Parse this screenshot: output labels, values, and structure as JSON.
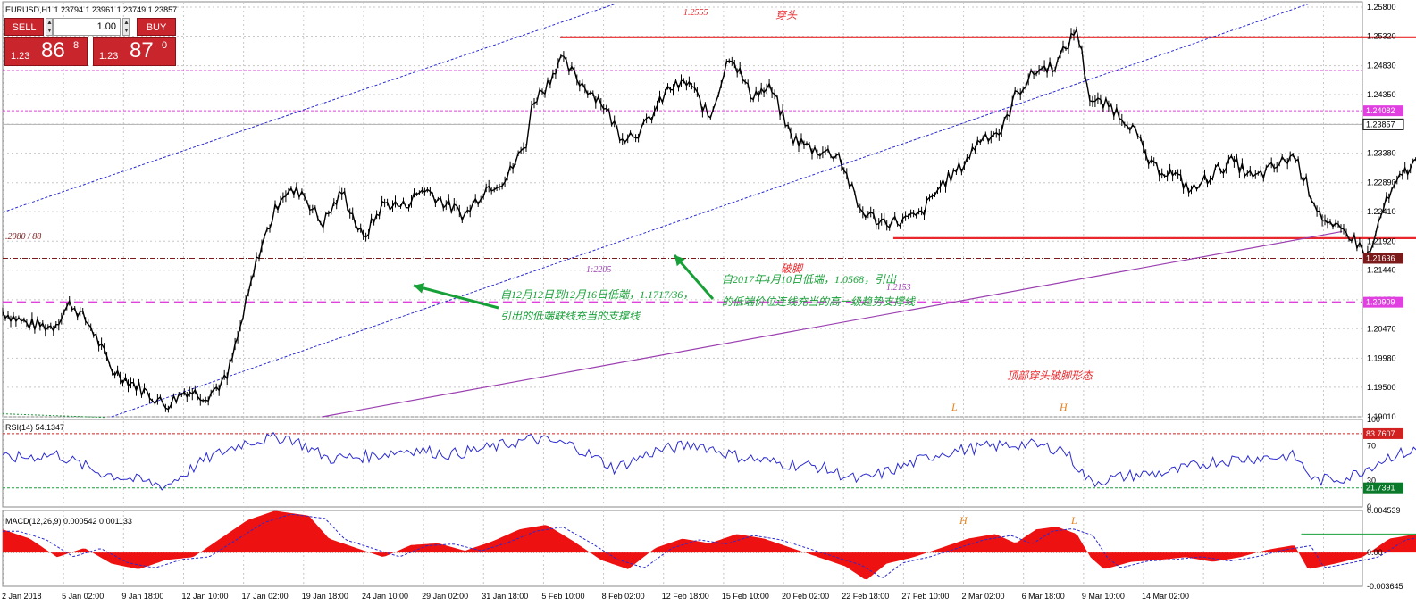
{
  "window": {
    "title": "EURUSD,H1  1.23794 1.23961 1.23749 1.23857"
  },
  "trade_panel": {
    "sell_label": "SELL",
    "buy_label": "BUY",
    "lot_value": "1.00",
    "sell_price_prefix": "1.23",
    "sell_price_main": "86",
    "sell_price_sup": "8",
    "buy_price_prefix": "1.23",
    "buy_price_main": "87",
    "buy_price_sup": "0",
    "spin_up_icon": "triangle-up",
    "spin_down_icon": "triangle-down"
  },
  "colors": {
    "candle": "#000000",
    "resistance": "#e8282c",
    "channel": "#2b2bd0",
    "trend": "#9b3fb0",
    "hline_magenta": "#e040e0",
    "hline_darkred": "#7a1a1a",
    "rsi": "#2b2bd0",
    "macd_hist": "#ee1111",
    "macd_signal": "#2b2bd0",
    "green": "#18a038",
    "orange": "#e8821e"
  },
  "chart_data": [
    {
      "type": "candlestick",
      "symbol": "EURUSD",
      "timeframe": "H1",
      "ylim": [
        1.1901,
        1.258
      ],
      "y_ticks": [
        "1.25800",
        "1.25320",
        "1.24830",
        "1.24350",
        "1.23860",
        "1.23380",
        "1.22890",
        "1.22410",
        "1.21920",
        "1.21440",
        "1.20950",
        "1.20470",
        "1.19980",
        "1.19500",
        "1.19010"
      ],
      "x_ticks": [
        "2 Jan 2018",
        "5 Jan 02:00",
        "9 Jan 18:00",
        "12 Jan 10:00",
        "17 Jan 02:00",
        "19 Jan 18:00",
        "24 Jan 10:00",
        "29 Jan 02:00",
        "31 Jan 18:00",
        "5 Feb 10:00",
        "8 Feb 02:00",
        "12 Feb 18:00",
        "15 Feb 10:00",
        "20 Feb 02:00",
        "22 Feb 18:00",
        "27 Feb 10:00",
        "2 Mar 02:00",
        "6 Mar 18:00",
        "9 Mar 10:00",
        "14 Mar 02:00"
      ],
      "path_points": [
        [
          0,
          1.2075
        ],
        [
          0.018,
          1.2055
        ],
        [
          0.037,
          1.205
        ],
        [
          0.05,
          1.209
        ],
        [
          0.065,
          1.205
        ],
        [
          0.08,
          1.198
        ],
        [
          0.1,
          1.195
        ],
        [
          0.12,
          1.192
        ],
        [
          0.135,
          1.1945
        ],
        [
          0.15,
          1.1935
        ],
        [
          0.165,
          1.1965
        ],
        [
          0.175,
          1.205
        ],
        [
          0.188,
          1.217
        ],
        [
          0.205,
          1.227
        ],
        [
          0.22,
          1.2275
        ],
        [
          0.235,
          1.222
        ],
        [
          0.25,
          1.2275
        ],
        [
          0.265,
          1.2195
        ],
        [
          0.28,
          1.2255
        ],
        [
          0.295,
          1.225
        ],
        [
          0.31,
          1.228
        ],
        [
          0.325,
          1.2255
        ],
        [
          0.34,
          1.2235
        ],
        [
          0.355,
          1.228
        ],
        [
          0.37,
          1.2295
        ],
        [
          0.385,
          1.2355
        ],
        [
          0.39,
          1.2425
        ],
        [
          0.4,
          1.245
        ],
        [
          0.41,
          1.2495
        ],
        [
          0.425,
          1.2455
        ],
        [
          0.44,
          1.2425
        ],
        [
          0.455,
          1.2365
        ],
        [
          0.47,
          1.2375
        ],
        [
          0.49,
          1.2445
        ],
        [
          0.505,
          1.2455
        ],
        [
          0.52,
          1.2395
        ],
        [
          0.535,
          1.2505
        ],
        [
          0.55,
          1.2435
        ],
        [
          0.565,
          1.2445
        ],
        [
          0.58,
          1.2365
        ],
        [
          0.595,
          1.2345
        ],
        [
          0.615,
          1.2335
        ],
        [
          0.63,
          1.2245
        ],
        [
          0.645,
          1.2225
        ],
        [
          0.66,
          1.2225
        ],
        [
          0.675,
          1.2235
        ],
        [
          0.69,
          1.2285
        ],
        [
          0.705,
          1.2315
        ],
        [
          0.72,
          1.2365
        ],
        [
          0.735,
          1.2375
        ],
        [
          0.745,
          1.2435
        ],
        [
          0.76,
          1.2475
        ],
        [
          0.775,
          1.2485
        ],
        [
          0.79,
          1.2545
        ],
        [
          0.8,
          1.2425
        ],
        [
          0.815,
          1.2415
        ],
        [
          0.83,
          1.2385
        ],
        [
          0.845,
          1.2315
        ],
        [
          0.86,
          1.2305
        ],
        [
          0.875,
          1.2275
        ],
        [
          0.89,
          1.2305
        ],
        [
          0.905,
          1.2325
        ],
        [
          0.92,
          1.2295
        ],
        [
          0.935,
          1.2315
        ],
        [
          0.95,
          1.2335
        ],
        [
          0.965,
          1.2255
        ],
        [
          0.975,
          1.2215
        ],
        [
          0.99,
          1.2205
        ],
        [
          1.005,
          1.2165
        ],
        [
          1.015,
          1.2245
        ],
        [
          1.03,
          1.2305
        ],
        [
          1.045,
          1.2335
        ],
        [
          1.06,
          1.2345
        ],
        [
          1.075,
          1.2405
        ],
        [
          1.09,
          1.2425
        ],
        [
          1.105,
          1.2395
        ],
        [
          1.12,
          1.2405
        ],
        [
          1.13,
          1.2305
        ],
        [
          1.145,
          1.2295
        ],
        [
          1.16,
          1.2315
        ],
        [
          1.175,
          1.2305
        ],
        [
          1.19,
          1.2335
        ],
        [
          1.2,
          1.2395
        ],
        [
          1.21,
          1.2405
        ],
        [
          1.218,
          1.2386
        ]
      ],
      "horizontal_lines": [
        {
          "name": "resistance",
          "price": 1.253,
          "style": "solid-red",
          "from": 0.41,
          "to": 1.488
        },
        {
          "name": "neckline",
          "price": 1.2197,
          "style": "solid-red",
          "from": 0.655,
          "to": 1.488
        },
        {
          "name": "magenta-1",
          "price": 1.2475,
          "style": "dotted-magenta"
        },
        {
          "name": "magenta-2",
          "price": 1.24082,
          "style": "dotted-magenta",
          "label": "1.24082"
        },
        {
          "name": "current-price",
          "price": 1.23857,
          "style": "solid-gray",
          "label": "1.23857"
        },
        {
          "name": "darkred",
          "price": 1.21636,
          "style": "dashdot-darkred",
          "label": "1.21636"
        },
        {
          "name": "magenta-dash",
          "price": 1.20909,
          "style": "dashed-magenta",
          "label": "1.20909"
        },
        {
          "name": "gray-top",
          "price": 1.2461,
          "style": "dotted-gray"
        }
      ],
      "annotations": {
        "top_price": "1.2555",
        "top_label": "穿头",
        "low1_price": "1:2205",
        "low2_price": "1.2153",
        "bottom_label": "破脚",
        "left_label": ".2080 / 88",
        "note1_line1": "自12月12日到12月16日低端，1.1717/36，",
        "note1_line2": "引出的低端联线充当的支撑线",
        "note2_line1": "自2017年4月10日低端，1.0568，引出",
        "note2_line2": "的低端价位连线充当的高一级趋势支撑线",
        "pattern_label": "顶部穿头破脚形态",
        "L": "L",
        "H": "H"
      }
    },
    {
      "type": "line",
      "name": "RSI(14) 54.1347",
      "ylim": [
        0,
        100
      ],
      "y_ticks": [
        "100",
        "70",
        "30",
        "0"
      ],
      "levels": [
        {
          "value": 83.7607,
          "label": "83.7607",
          "style": "dashed-red"
        },
        {
          "value": 21.7391,
          "label": "21.7391",
          "style": "dotted-green"
        }
      ],
      "path_points": [
        [
          0,
          55
        ],
        [
          0.04,
          60
        ],
        [
          0.07,
          40
        ],
        [
          0.1,
          30
        ],
        [
          0.12,
          24
        ],
        [
          0.15,
          55
        ],
        [
          0.18,
          75
        ],
        [
          0.21,
          80
        ],
        [
          0.24,
          55
        ],
        [
          0.27,
          58
        ],
        [
          0.3,
          66
        ],
        [
          0.33,
          60
        ],
        [
          0.36,
          68
        ],
        [
          0.39,
          78
        ],
        [
          0.42,
          70
        ],
        [
          0.45,
          44
        ],
        [
          0.48,
          64
        ],
        [
          0.51,
          72
        ],
        [
          0.54,
          58
        ],
        [
          0.57,
          50
        ],
        [
          0.6,
          46
        ],
        [
          0.63,
          30
        ],
        [
          0.66,
          45
        ],
        [
          0.69,
          62
        ],
        [
          0.72,
          68
        ],
        [
          0.75,
          72
        ],
        [
          0.78,
          66
        ],
        [
          0.8,
          28
        ],
        [
          0.83,
          36
        ],
        [
          0.86,
          40
        ],
        [
          0.89,
          52
        ],
        [
          0.92,
          56
        ],
        [
          0.95,
          58
        ],
        [
          0.965,
          30
        ],
        [
          0.99,
          34
        ],
        [
          1.02,
          58
        ],
        [
          1.05,
          68
        ],
        [
          1.08,
          74
        ],
        [
          1.11,
          60
        ],
        [
          1.13,
          36
        ],
        [
          1.16,
          44
        ],
        [
          1.19,
          64
        ],
        [
          1.2,
          78
        ],
        [
          1.21,
          70
        ],
        [
          1.218,
          54
        ]
      ]
    },
    {
      "type": "histogram",
      "name": "MACD(12,26,9) 0.000542 0.001133",
      "ylim": [
        -0.003645,
        0.004539
      ],
      "y_ticks": [
        "0.004539",
        "0.00",
        "-0.003645"
      ],
      "hline": {
        "value": 0.002,
        "from": 0.955,
        "to": 1.325
      },
      "labels": {
        "H": "H",
        "L": "L"
      },
      "path_points": [
        [
          0,
          0.0025
        ],
        [
          0.02,
          0.0015
        ],
        [
          0.04,
          -0.0005
        ],
        [
          0.06,
          0.0005
        ],
        [
          0.08,
          -0.0012
        ],
        [
          0.1,
          -0.0018
        ],
        [
          0.12,
          -0.0008
        ],
        [
          0.14,
          -0.0005
        ],
        [
          0.16,
          0.0015
        ],
        [
          0.18,
          0.0035
        ],
        [
          0.2,
          0.0045
        ],
        [
          0.225,
          0.004
        ],
        [
          0.24,
          0.0015
        ],
        [
          0.26,
          0.0005
        ],
        [
          0.28,
          -0.0005
        ],
        [
          0.3,
          0.0008
        ],
        [
          0.32,
          0.001
        ],
        [
          0.34,
          0.0002
        ],
        [
          0.36,
          0.0012
        ],
        [
          0.38,
          0.0025
        ],
        [
          0.4,
          0.003
        ],
        [
          0.42,
          0.0012
        ],
        [
          0.44,
          -0.0008
        ],
        [
          0.46,
          -0.0018
        ],
        [
          0.48,
          0.0005
        ],
        [
          0.5,
          0.0015
        ],
        [
          0.52,
          0.001
        ],
        [
          0.54,
          0.002
        ],
        [
          0.56,
          0.0015
        ],
        [
          0.58,
          0.0005
        ],
        [
          0.6,
          -0.0005
        ],
        [
          0.62,
          -0.0015
        ],
        [
          0.635,
          -0.003
        ],
        [
          0.65,
          -0.0012
        ],
        [
          0.67,
          -0.0005
        ],
        [
          0.69,
          0.0005
        ],
        [
          0.71,
          0.0015
        ],
        [
          0.73,
          0.002
        ],
        [
          0.745,
          0.001
        ],
        [
          0.76,
          0.0025
        ],
        [
          0.775,
          0.0028
        ],
        [
          0.79,
          0.002
        ],
        [
          0.8,
          -0.0005
        ],
        [
          0.81,
          -0.0018
        ],
        [
          0.83,
          -0.001
        ],
        [
          0.85,
          -0.0008
        ],
        [
          0.87,
          -0.0005
        ],
        [
          0.89,
          -0.001
        ],
        [
          0.91,
          -0.0005
        ],
        [
          0.93,
          0.0003
        ],
        [
          0.95,
          0.0008
        ],
        [
          0.96,
          -0.0018
        ],
        [
          0.98,
          -0.0012
        ],
        [
          1.0,
          -0.0005
        ],
        [
          1.02,
          0.0015
        ],
        [
          1.04,
          0.002
        ],
        [
          1.06,
          0.0012
        ],
        [
          1.08,
          0.0015
        ],
        [
          1.1,
          0.0005
        ],
        [
          1.12,
          -0.0015
        ],
        [
          1.14,
          -0.0018
        ],
        [
          1.16,
          -0.0005
        ],
        [
          1.18,
          0.0003
        ],
        [
          1.2,
          0.0014
        ],
        [
          1.21,
          0.0012
        ],
        [
          1.22,
          0.0005
        ]
      ]
    }
  ]
}
